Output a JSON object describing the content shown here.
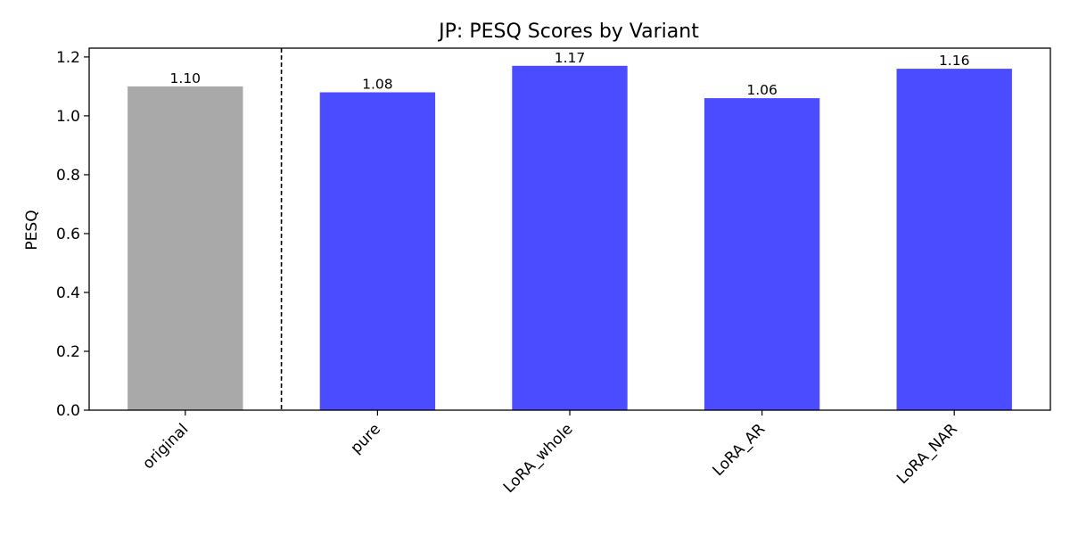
{
  "chart_data": {
    "type": "bar",
    "title": "JP: PESQ Scores by Variant",
    "xlabel": "",
    "ylabel": "PESQ",
    "categories": [
      "original",
      "pure",
      "LoRA_whole",
      "LoRA_AR",
      "LoRA_NAR"
    ],
    "values": [
      1.1,
      1.08,
      1.17,
      1.06,
      1.16
    ],
    "data_labels": [
      "1.10",
      "1.08",
      "1.17",
      "1.06",
      "1.16"
    ],
    "colors": [
      "#a9a9a9",
      "#4b4bff",
      "#4b4bff",
      "#4b4bff",
      "#4b4bff"
    ],
    "ylim": [
      0,
      1.23
    ],
    "yticks": [
      0.0,
      0.2,
      0.4,
      0.6,
      0.8,
      1.0,
      1.2
    ],
    "ytick_labels": [
      "0.0",
      "0.2",
      "0.4",
      "0.6",
      "0.8",
      "1.0",
      "1.2"
    ],
    "separator_after_index": 0,
    "grid": false,
    "legend": "none"
  }
}
